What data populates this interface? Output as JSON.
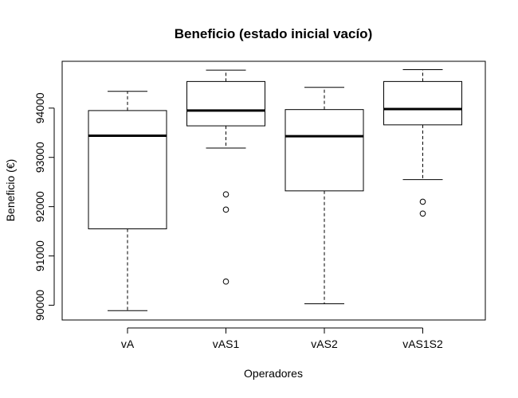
{
  "chart_data": {
    "type": "boxplot",
    "title": "Beneficio (estado inicial vacío)",
    "xlabel": "Operadores",
    "ylabel": "Beneficio (€)",
    "ylim": [
      89700,
      94950
    ],
    "yticks": [
      90000,
      91000,
      92000,
      93000,
      94000
    ],
    "grid": false,
    "categories": [
      "vA",
      "vAS1",
      "vAS2",
      "vAS1S2"
    ],
    "boxes": [
      {
        "name": "vA",
        "whisker_low": 89890,
        "q1": 91550,
        "median": 93440,
        "q3": 93950,
        "whisker_high": 94340,
        "outliers": []
      },
      {
        "name": "vAS1",
        "whisker_low": 93190,
        "q1": 93640,
        "median": 93950,
        "q3": 94540,
        "whisker_high": 94770,
        "outliers": [
          92250,
          91940,
          90480
        ]
      },
      {
        "name": "vAS2",
        "whisker_low": 90030,
        "q1": 92320,
        "median": 93430,
        "q3": 93970,
        "whisker_high": 94420,
        "outliers": []
      },
      {
        "name": "vAS1S2",
        "whisker_low": 92550,
        "q1": 93660,
        "median": 93980,
        "q3": 94540,
        "whisker_high": 94780,
        "outliers": [
          92100,
          91860
        ]
      }
    ]
  }
}
